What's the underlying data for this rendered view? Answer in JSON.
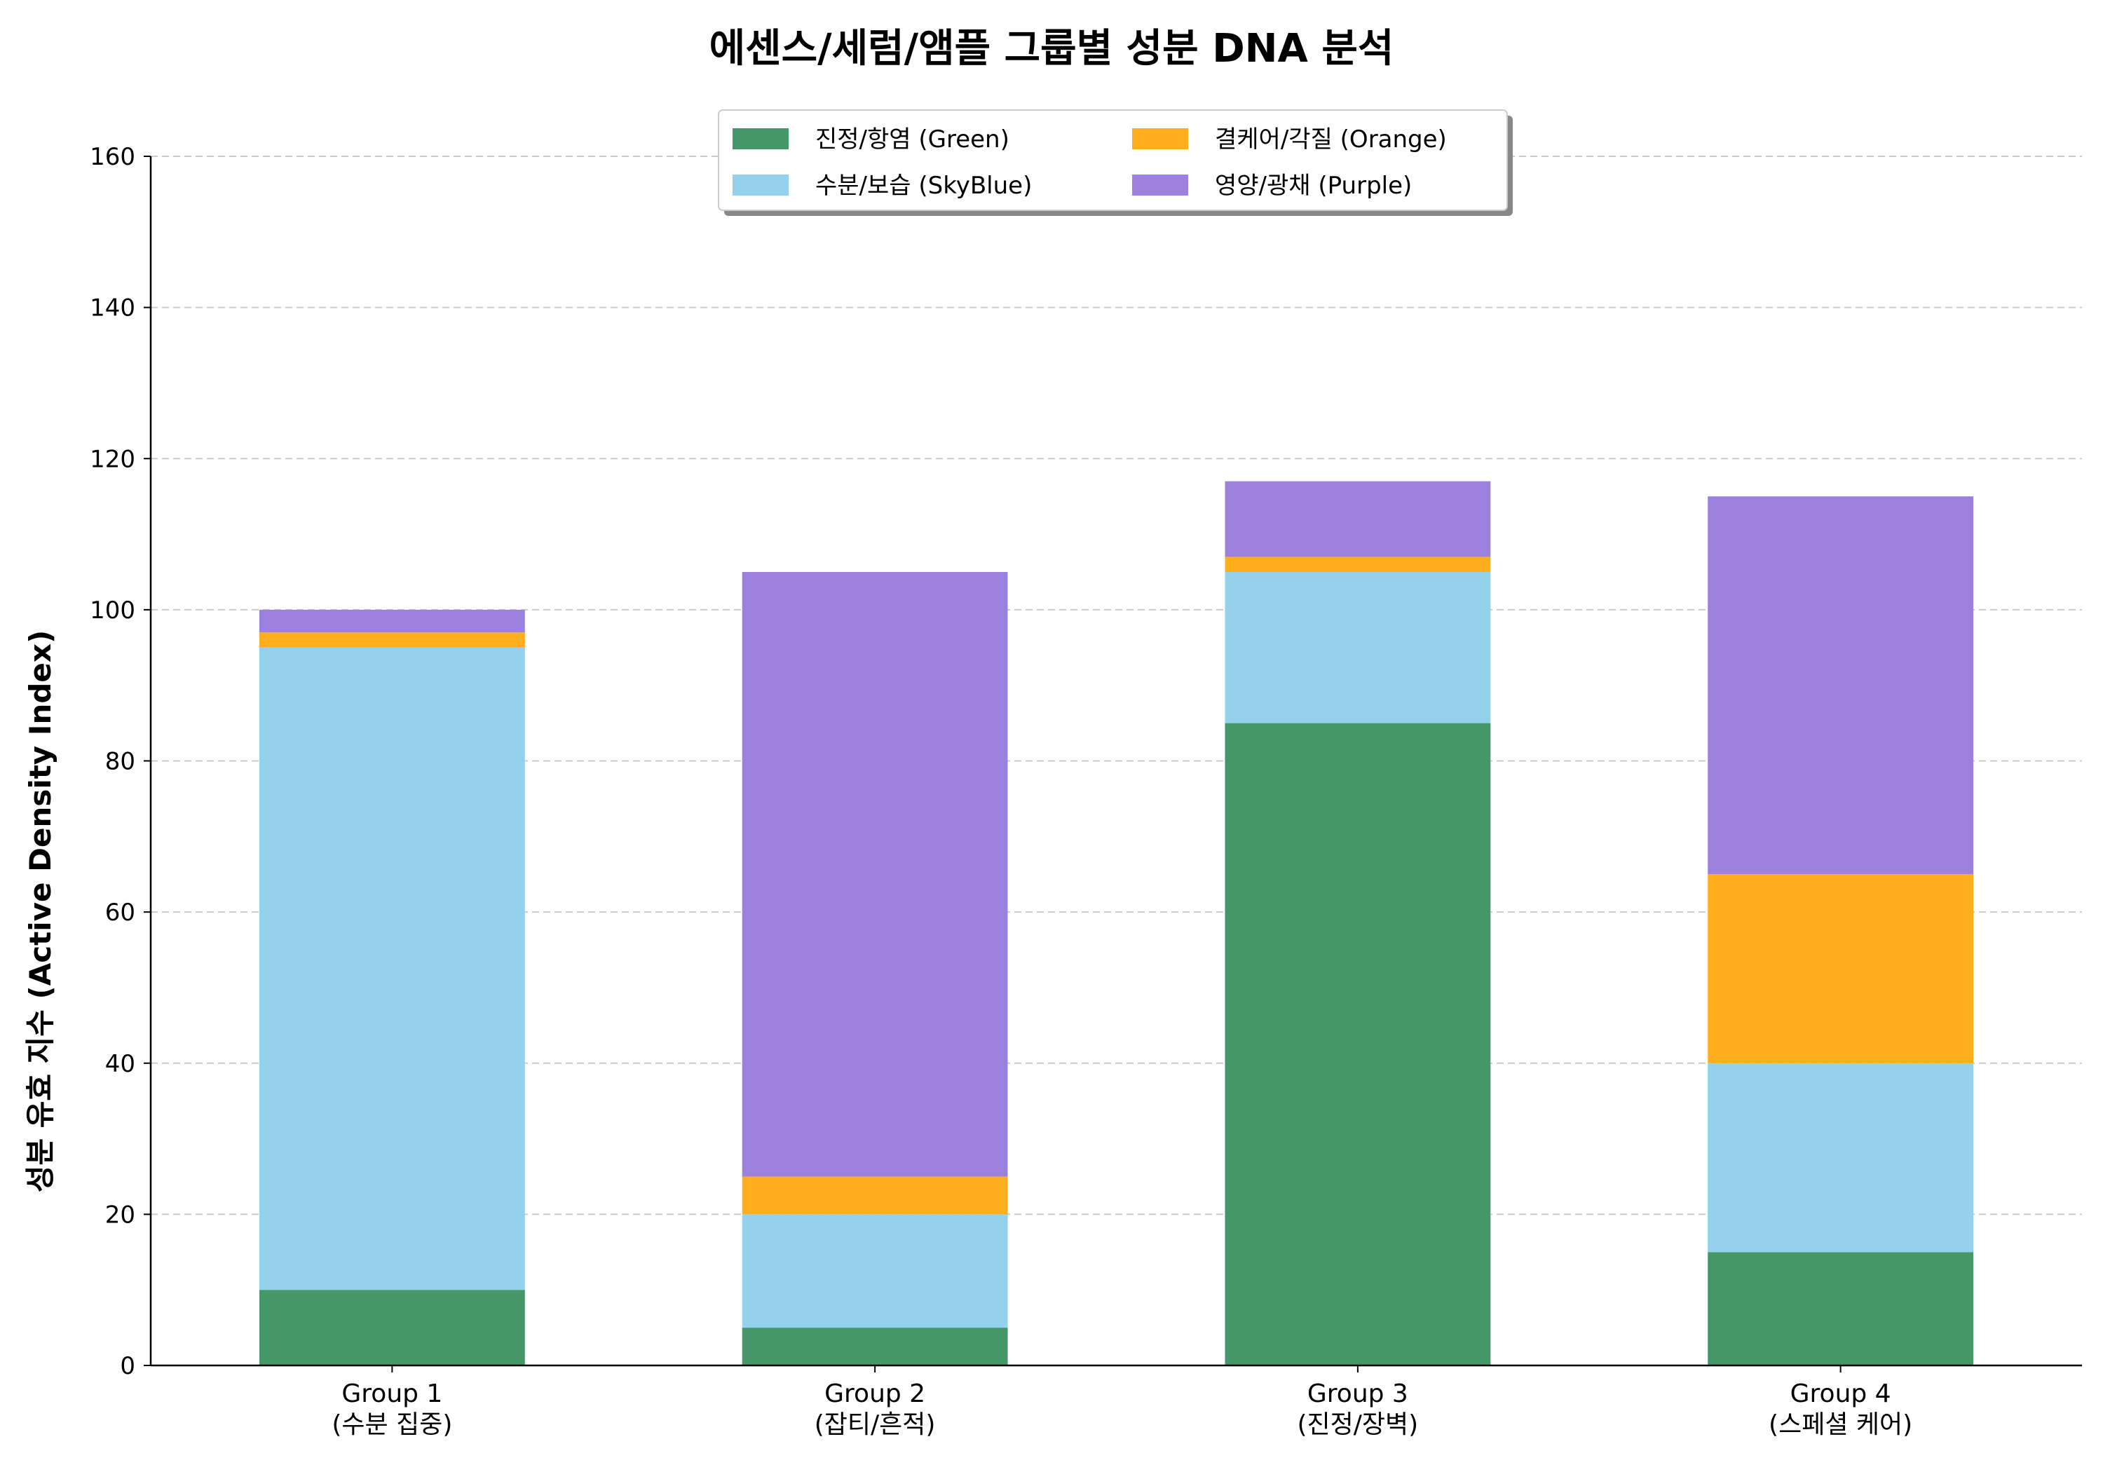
{
  "chart_data": {
    "type": "bar",
    "stacked": true,
    "title": "에센스/세럼/앰플 그룹별 성분 DNA 분석",
    "ylabel": "성분 유효 지수 (Active Density Index)",
    "xlabel": "",
    "ylim": [
      0,
      160
    ],
    "yticks": [
      0,
      20,
      40,
      60,
      80,
      100,
      120,
      140,
      160
    ],
    "grid": "y-dashed",
    "legend_position": "top-center",
    "categories": [
      [
        "Group 1",
        "(수분 집중)"
      ],
      [
        "Group 2",
        "(잡티/흔적)"
      ],
      [
        "Group 3",
        "(진정/장벽)"
      ],
      [
        "Group 4",
        "(스페셜 케어)"
      ]
    ],
    "series": [
      {
        "name": "진정/항염 (Green)",
        "color": "#45976a",
        "values": [
          10,
          5,
          85,
          15
        ]
      },
      {
        "name": "수분/보습 (SkyBlue)",
        "color": "#93d1ec",
        "values": [
          85,
          15,
          20,
          25
        ]
      },
      {
        "name": "결케어/각질 (Orange)",
        "color": "#ffae1d",
        "values": [
          2,
          5,
          2,
          25
        ]
      },
      {
        "name": "영양/광채 (Purple)",
        "color": "#9c80de",
        "values": [
          3,
          80,
          10,
          50
        ]
      }
    ]
  }
}
